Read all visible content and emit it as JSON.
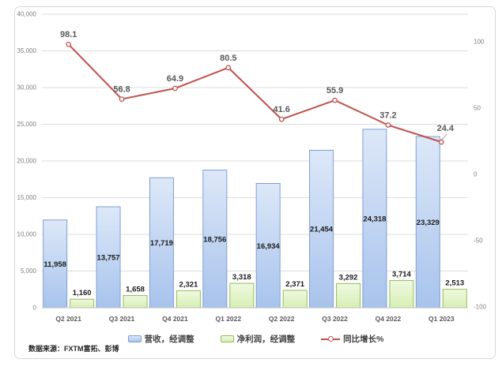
{
  "source_note": "数据来源：FXTM富拓、彭博",
  "chart_data": {
    "type": "combo-bar-line",
    "title": "",
    "categories": [
      "Q2 2021",
      "Q3 2021",
      "Q4 2021",
      "Q1 2022",
      "Q2 2022",
      "Q3 2022",
      "Q4 2022",
      "Q1 2023"
    ],
    "series": [
      {
        "name": "营收，经调整",
        "type": "bar",
        "axis": "left",
        "values": [
          11958,
          13757,
          17719,
          18756,
          16934,
          21454,
          24318,
          23329
        ],
        "labels": [
          "11,958",
          "13,757",
          "17,719",
          "18,756",
          "16,934",
          "21,454",
          "24,318",
          "23,329"
        ]
      },
      {
        "name": "净利润，经调整",
        "type": "bar",
        "axis": "left",
        "values": [
          1160,
          1658,
          2321,
          3318,
          2371,
          3292,
          3714,
          2513
        ],
        "labels": [
          "1,160",
          "1,658",
          "2,321",
          "3,318",
          "2,371",
          "3,292",
          "3,714",
          "2,513"
        ]
      },
      {
        "name": "同比增长%",
        "type": "line",
        "axis": "right",
        "values": [
          98.1,
          56.8,
          64.9,
          80.5,
          41.6,
          55.9,
          37.2,
          24.4
        ],
        "labels": [
          "98.1",
          "56.8",
          "64.9",
          "80.5",
          "41.6",
          "55.9",
          "37.2",
          "24.4"
        ]
      }
    ],
    "left_axis": {
      "min": 0,
      "max": 40000,
      "step": 5000,
      "tick_labels": [
        "0",
        "5,000",
        "10,000",
        "15,000",
        "20,000",
        "25,000",
        "30,000",
        "35,000",
        "40,000"
      ]
    },
    "right_axis": {
      "min": -100,
      "max": 100,
      "step": 50,
      "tick_labels": [
        "-100",
        "-50",
        "0",
        "50",
        "100"
      ]
    },
    "legend_position": "bottom",
    "grid": true
  },
  "colors": {
    "revenue_fill_top": "#dde8f8",
    "revenue_fill_bottom": "#a8c3ec",
    "revenue_border": "#7f9fd4",
    "profit_fill_top": "#f0f9e2",
    "profit_fill_bottom": "#d6efb3",
    "profit_border": "#94bd57",
    "growth_line": "#c0504d",
    "marker_fill": "#ffffff",
    "gridline": "#dcdcdc",
    "axis_line": "#bfbfbf",
    "frame_border": "#d9d9d9",
    "tick_text": "#7f7f7f",
    "category_text": "#595959",
    "bar_label_text": "#1a1a1a",
    "line_label_text": "#595959",
    "leader_line": "#a6a6a6"
  }
}
